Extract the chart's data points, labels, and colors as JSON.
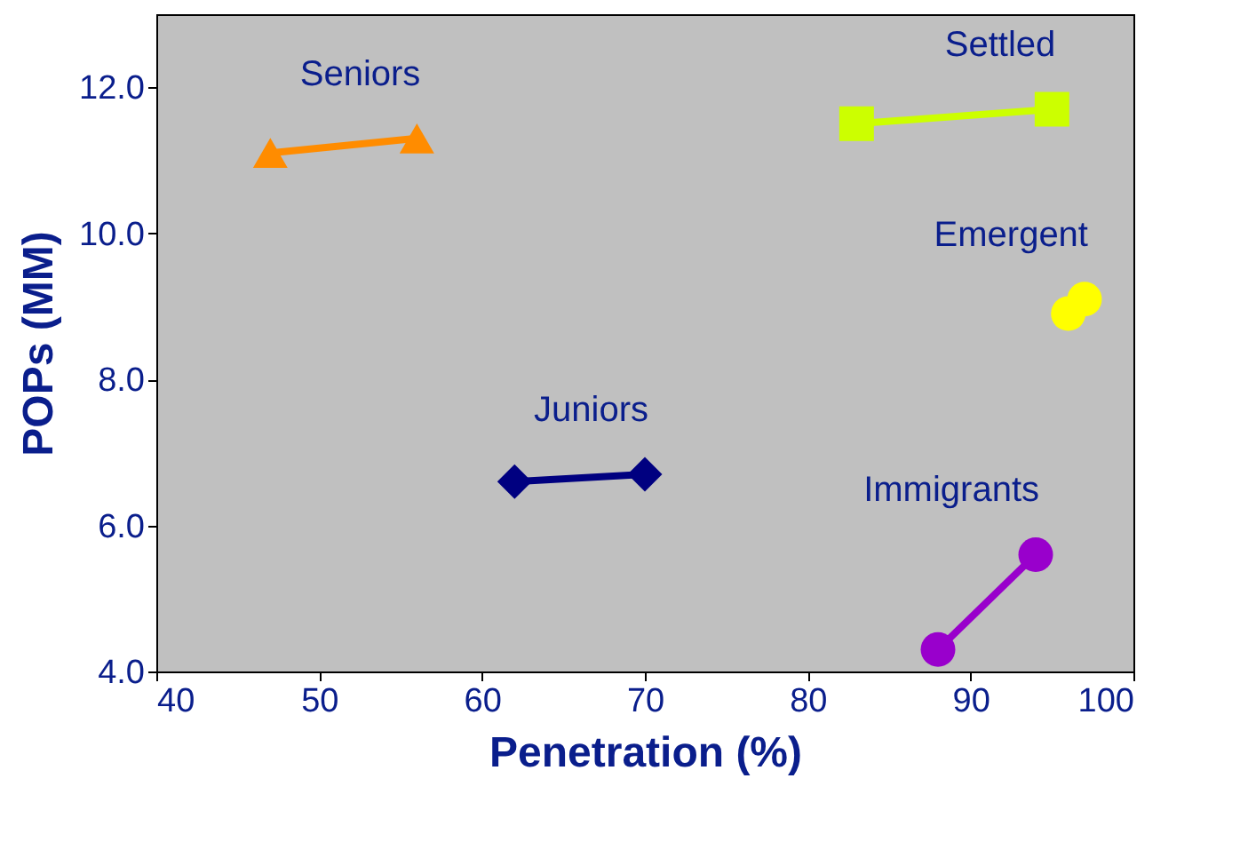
{
  "chart_data": {
    "type": "line",
    "xlabel": "Penetration (%)",
    "ylabel": "POPs (MM)",
    "xlim": [
      40,
      100
    ],
    "xticks": [
      40,
      50,
      60,
      70,
      80,
      90,
      100
    ],
    "ylim": [
      4,
      13
    ],
    "yticks": [
      {
        "value": 4,
        "label": "4.0"
      },
      {
        "value": 6,
        "label": "6.0"
      },
      {
        "value": 8,
        "label": "8.0"
      },
      {
        "value": 10,
        "label": "10.0"
      },
      {
        "value": 12,
        "label": "12.0"
      }
    ],
    "grid": false,
    "series": [
      {
        "name": "Seniors",
        "color": "#ff8c00",
        "marker": "triangle",
        "x": [
          47,
          56
        ],
        "values": [
          11.1,
          11.3
        ]
      },
      {
        "name": "Settled",
        "color": "#ccff00",
        "marker": "square",
        "x": [
          83,
          95
        ],
        "values": [
          11.5,
          11.7
        ]
      },
      {
        "name": "Emergent",
        "type": "scatter",
        "color": "#ffff00",
        "marker": "circle",
        "x": [
          96,
          97
        ],
        "values": [
          8.9,
          9.1
        ]
      },
      {
        "name": "Juniors",
        "color": "#000080",
        "marker": "diamond",
        "x": [
          62,
          70
        ],
        "values": [
          6.6,
          6.7
        ]
      },
      {
        "name": "Immigrants",
        "color": "#9900cc",
        "marker": "circle",
        "x": [
          88,
          94
        ],
        "values": [
          4.3,
          5.6
        ]
      }
    ]
  }
}
